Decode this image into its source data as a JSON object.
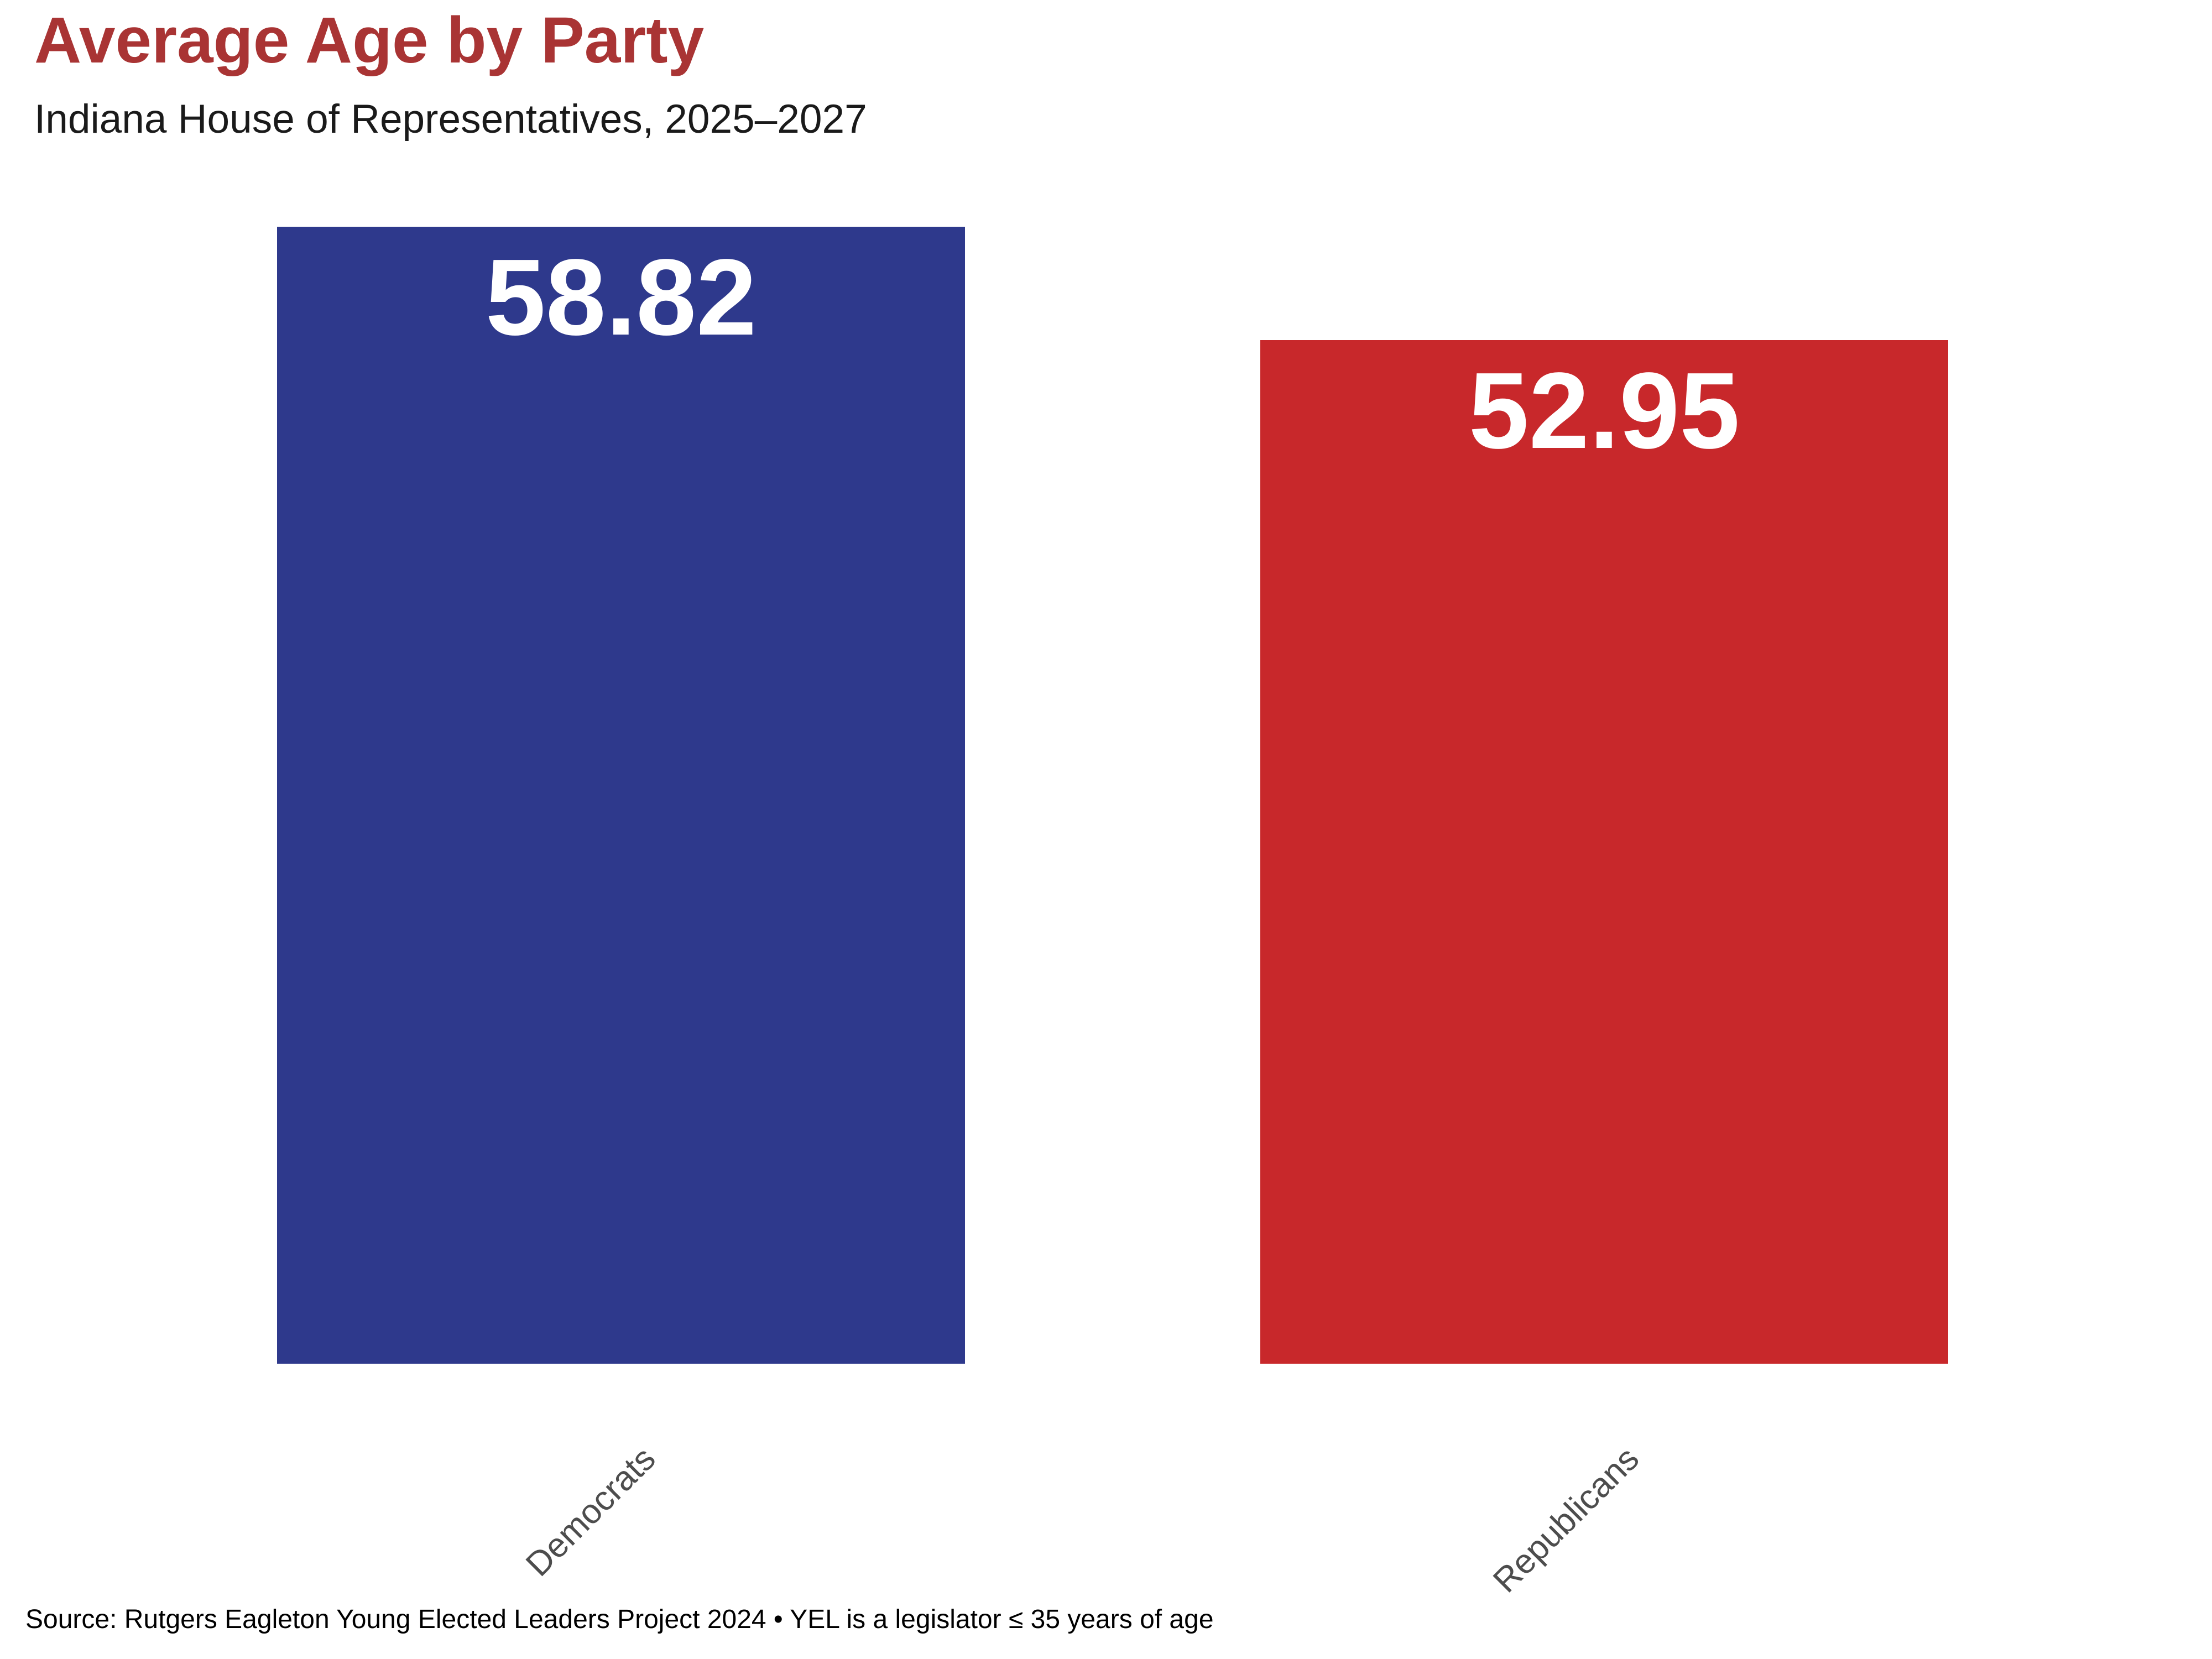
{
  "header": {
    "title": "Average Age by Party",
    "subtitle": "Indiana House of Representatives, 2025–2027"
  },
  "chart_data": {
    "type": "bar",
    "orientation": "vertical",
    "title": "Average Age by Party",
    "subtitle": "Indiana House of Representatives, 2025–2027",
    "categories": [
      "Democrats",
      "Republicans"
    ],
    "values": [
      58.82,
      52.95
    ],
    "value_labels": [
      "58.82",
      "52.95"
    ],
    "bar_colors": [
      "#2E398C",
      "#C8282B"
    ],
    "value_label_color": "#FFFFFF",
    "category_label_color": "#4D4D4D",
    "category_label_rotation_deg": 45,
    "xlabel": "",
    "ylabel": "",
    "ylim": [
      0,
      58.82
    ],
    "grid": false,
    "legend": false,
    "axes_visible": false
  },
  "footer": {
    "source": "Source: Rutgers Eagleton Young Elected Leaders Project 2024 • YEL is a legislator ≤ 35 years of age"
  },
  "colors": {
    "title": "#A93434",
    "subtitle": "#1A1A1A",
    "background": "#FFFFFF"
  }
}
